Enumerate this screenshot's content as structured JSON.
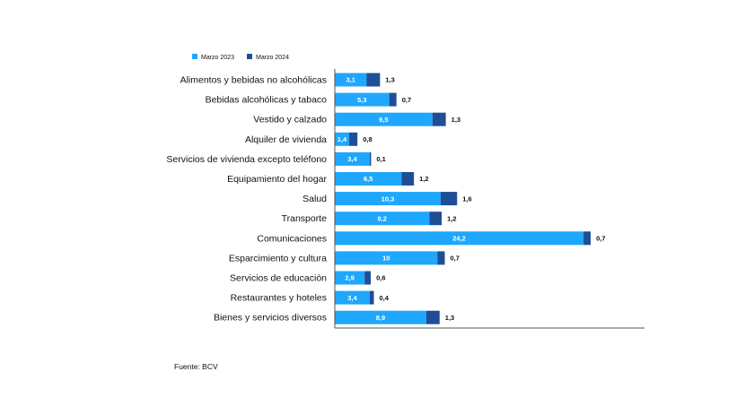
{
  "colors": {
    "series_2023": "#1ea7fd",
    "series_2024": "#1f4e96",
    "axis": "#555555"
  },
  "source": "Fuente: BCV",
  "chart_data": {
    "type": "bar",
    "orientation": "horizontal",
    "stacked": true,
    "legend_position": "top-left",
    "grid": false,
    "categories": [
      "Alimentos y bebidas no alcohólicas",
      "Bebidas alcohólicas y tabaco",
      "Vestido y calzado",
      "Alquiler de vivienda",
      "Servicios de vivienda excepto teléfono",
      "Equipamiento del hogar",
      "Salud",
      "Transporte",
      "Comunicaciones",
      "Esparcimiento y cultura",
      "Servicios de educación",
      "Restaurantes y hoteles",
      "Bienes y servicios diversos"
    ],
    "series": [
      {
        "name": "Marzo 2023",
        "values": [
          3.1,
          5.3,
          9.5,
          1.4,
          3.4,
          6.5,
          10.3,
          9.2,
          24.2,
          10,
          2.9,
          3.4,
          8.9
        ],
        "labels": [
          "3,1",
          "5,3",
          "9,5",
          "1,4",
          "3,4",
          "6,5",
          "10,3",
          "9,2",
          "24,2",
          "10",
          "2,9",
          "3,4",
          "8,9"
        ]
      },
      {
        "name": "Marzo 2024",
        "values": [
          1.3,
          0.7,
          1.3,
          0.8,
          0.1,
          1.2,
          1.6,
          1.2,
          0.7,
          0.7,
          0.6,
          0.4,
          1.3
        ],
        "labels": [
          "1,3",
          "0,7",
          "1,3",
          "0,8",
          "0,1",
          "1,2",
          "1,6",
          "1,2",
          "0,7",
          "0,7",
          "0,6",
          "0,4",
          "1,3"
        ]
      }
    ]
  }
}
